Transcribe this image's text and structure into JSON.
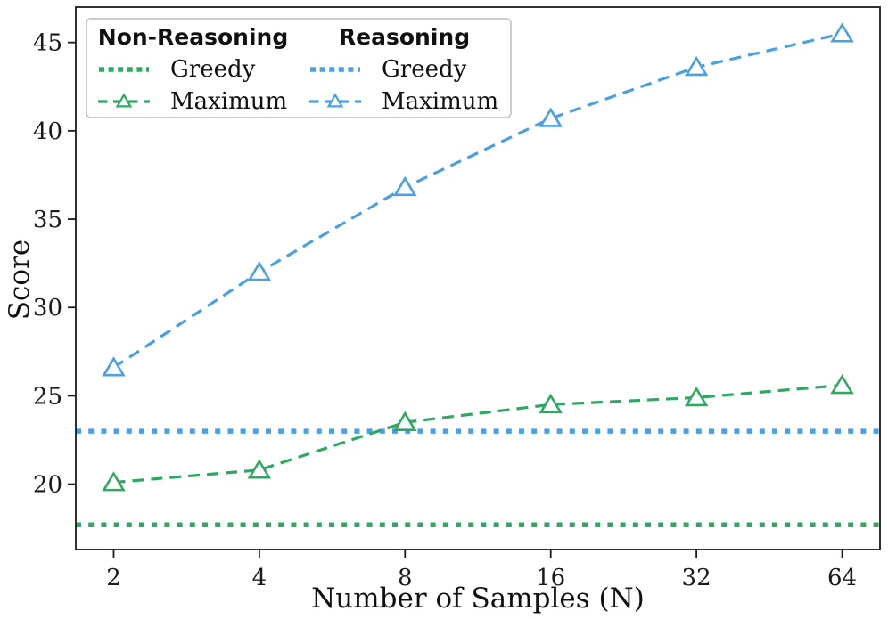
{
  "figure": {
    "xlabel": "Number of Samples (N)",
    "ylabel": "Score"
  },
  "legend": {
    "columns": [
      {
        "header": "Non-Reasoning",
        "items": [
          {
            "label": "Greedy",
            "style": "dotted",
            "color": "#2fa863"
          },
          {
            "label": "Maximum",
            "style": "dash-triangle",
            "color": "#2fa863"
          }
        ]
      },
      {
        "header": "Reasoning",
        "items": [
          {
            "label": "Greedy",
            "style": "dotted",
            "color": "#4aa0e0"
          },
          {
            "label": "Maximum",
            "style": "dash-triangle",
            "color": "#4aa0e0"
          }
        ]
      }
    ]
  },
  "colors": {
    "non_reasoning": "#2fa863",
    "reasoning": "#4aa0e0",
    "axis": "#1a1a1a",
    "legend_border": "#cccccc",
    "background": "#ffffff",
    "marker_face": "#ffffff"
  },
  "chart_data": {
    "type": "line",
    "title": "",
    "xlabel": "Number of Samples (N)",
    "ylabel": "Score",
    "x": [
      2,
      4,
      8,
      16,
      32,
      64
    ],
    "x_scale": "log2",
    "x_margin_log2": 0.26,
    "yticks": [
      20,
      25,
      30,
      35,
      40,
      45
    ],
    "ylim": [
      16.3,
      47.0
    ],
    "grid": false,
    "legend_position": "upper left",
    "series": [
      {
        "name": "Non-Reasoning Greedy",
        "kind": "hline",
        "value": 17.7,
        "color": "#2fa863",
        "linestyle": "dotted"
      },
      {
        "name": "Reasoning Greedy",
        "kind": "hline",
        "value": 23.0,
        "color": "#4aa0e0",
        "linestyle": "dotted"
      },
      {
        "name": "Non-Reasoning Maximum",
        "kind": "line",
        "values": [
          20.1,
          20.8,
          23.5,
          24.5,
          24.9,
          25.6
        ],
        "color": "#2fa863",
        "linestyle": "dashed",
        "marker": "triangle-up-open"
      },
      {
        "name": "Reasoning Maximum",
        "kind": "line",
        "values": [
          26.6,
          32.0,
          36.8,
          40.7,
          43.6,
          45.5
        ],
        "color": "#4aa0e0",
        "linestyle": "dashed",
        "marker": "triangle-up-open"
      }
    ]
  }
}
